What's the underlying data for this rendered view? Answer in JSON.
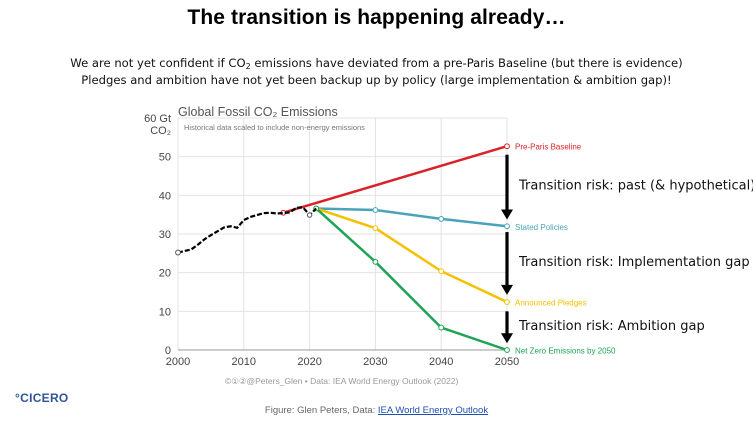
{
  "slide": {
    "title": "The transition is happening already…",
    "subtitle_line1_pre": "We are not yet confident if CO",
    "subtitle_line1_sub": "2",
    "subtitle_line1_post": " emissions have deviated from a pre-Paris Baseline (but there is evidence)",
    "subtitle_line2": "Pledges and ambition have not yet been backup up by policy (large implementation & ambition gap)!",
    "logo": "°CICERO",
    "figure_credit_prefix": "Figure: Glen Peters, Data: ",
    "figure_credit_link": "IEA World Energy Outlook"
  },
  "chart_data": {
    "type": "line",
    "title": "Global Fossil CO₂ Emissions",
    "subtitle": "Historical data scaled to include non-energy emissions",
    "ylabel_line1": "60 Gt",
    "ylabel_line2": "CO₂",
    "source_note": "©①②@Peters_Glen • Data: IEA World Energy Outlook (2022)",
    "xlim": [
      2000,
      2050
    ],
    "ylim": [
      0,
      60
    ],
    "x_ticks": [
      "2000",
      "2010",
      "2020",
      "2030",
      "2040",
      "2050"
    ],
    "y_ticks": [
      "0",
      "10",
      "20",
      "30",
      "40",
      "50"
    ],
    "grid": true,
    "historical": {
      "color": "#000000",
      "x": [
        2000,
        2001,
        2002,
        2003,
        2004,
        2005,
        2006,
        2007,
        2008,
        2009,
        2010,
        2011,
        2012,
        2013,
        2014,
        2015,
        2016,
        2017,
        2018,
        2019,
        2020,
        2021
      ],
      "y": [
        25.2,
        25.6,
        26.0,
        27.2,
        28.6,
        29.7,
        30.7,
        31.7,
        32.0,
        31.6,
        33.6,
        34.4,
        34.9,
        35.4,
        35.5,
        35.3,
        35.4,
        35.6,
        36.8,
        36.9,
        34.9,
        36.6
      ]
    },
    "series": [
      {
        "name": "Pre-Paris Baseline",
        "color": "#d9232a",
        "x": [
          2016,
          2050
        ],
        "y": [
          35.5,
          52.7
        ]
      },
      {
        "name": "Stated Policies",
        "color": "#4aa3ba",
        "x": [
          2021,
          2030,
          2040,
          2050
        ],
        "y": [
          36.6,
          36.2,
          33.9,
          32.0
        ]
      },
      {
        "name": "Announced Pledges",
        "color": "#f5c000",
        "x": [
          2021,
          2030,
          2040,
          2050
        ],
        "y": [
          36.6,
          31.5,
          20.4,
          12.4
        ]
      },
      {
        "name": "Net Zero Emissions by 2050",
        "color": "#1fa354",
        "x": [
          2021,
          2030,
          2040,
          2050
        ],
        "y": [
          36.6,
          22.8,
          5.8,
          0.0
        ]
      }
    ],
    "annotations": [
      {
        "text": "Transition risk: past (& hypothetical)",
        "from_y": 50.5,
        "to_y": 34.0
      },
      {
        "text": "Transition risk: Implementation gap",
        "from_y": 30.5,
        "to_y": 14.5
      },
      {
        "text": "Transition risk: Ambition gap",
        "from_y": 10.0,
        "to_y": 2.0
      }
    ]
  }
}
